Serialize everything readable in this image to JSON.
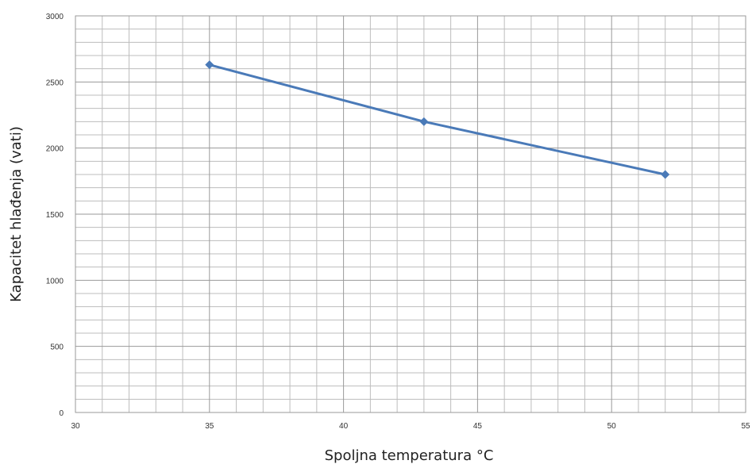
{
  "chart_data": {
    "type": "line",
    "title": "",
    "xlabel": "Spoljna temperatura °C",
    "ylabel": "Kapacitet hlađenja (vati)",
    "xlim": [
      30,
      55
    ],
    "ylim": [
      0,
      3000
    ],
    "x_ticks": [
      30,
      35,
      40,
      45,
      50,
      55
    ],
    "y_ticks": [
      0,
      500,
      1000,
      1500,
      2000,
      2500,
      3000
    ],
    "x_minor_step": 1,
    "y_minor_step": 100,
    "grid": true,
    "legend": "none",
    "series": [
      {
        "color": "#4a7ab8",
        "marker": "diamond",
        "x": [
          35,
          43,
          52
        ],
        "y": [
          2630,
          2200,
          1800
        ]
      }
    ]
  }
}
